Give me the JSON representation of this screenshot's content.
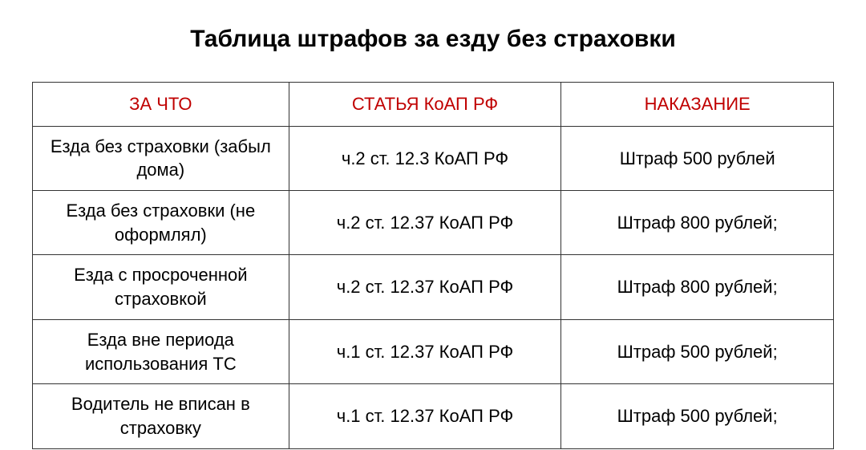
{
  "title": "Таблица штрафов за езду без страховки",
  "table": {
    "columns": [
      "ЗА ЧТО",
      "СТАТЬЯ КоАП РФ",
      "НАКАЗАНИЕ"
    ],
    "header_color": "#c00000",
    "text_color": "#000000",
    "border_color": "#333333",
    "background_color": "#ffffff",
    "fontsize_header": 22,
    "fontsize_cell": 22,
    "col_widths_pct": [
      32,
      34,
      34
    ],
    "rows": [
      [
        "Езда без страховки (забыл дома)",
        "ч.2 ст. 12.3 КоАП РФ",
        "Штраф 500 рублей"
      ],
      [
        "Езда без страховки (не оформлял)",
        "ч.2 ст. 12.37 КоАП РФ",
        "Штраф 800 рублей;"
      ],
      [
        "Езда с просроченной страховкой",
        "ч.2 ст. 12.37 КоАП РФ",
        "Штраф 800 рублей;"
      ],
      [
        "Езда вне периода использования ТС",
        "ч.1 ст. 12.37 КоАП РФ",
        "Штраф 500 рублей;"
      ],
      [
        "Водитель не вписан в страховку",
        "ч.1 ст. 12.37 КоАП РФ",
        "Штраф 500 рублей;"
      ]
    ]
  }
}
